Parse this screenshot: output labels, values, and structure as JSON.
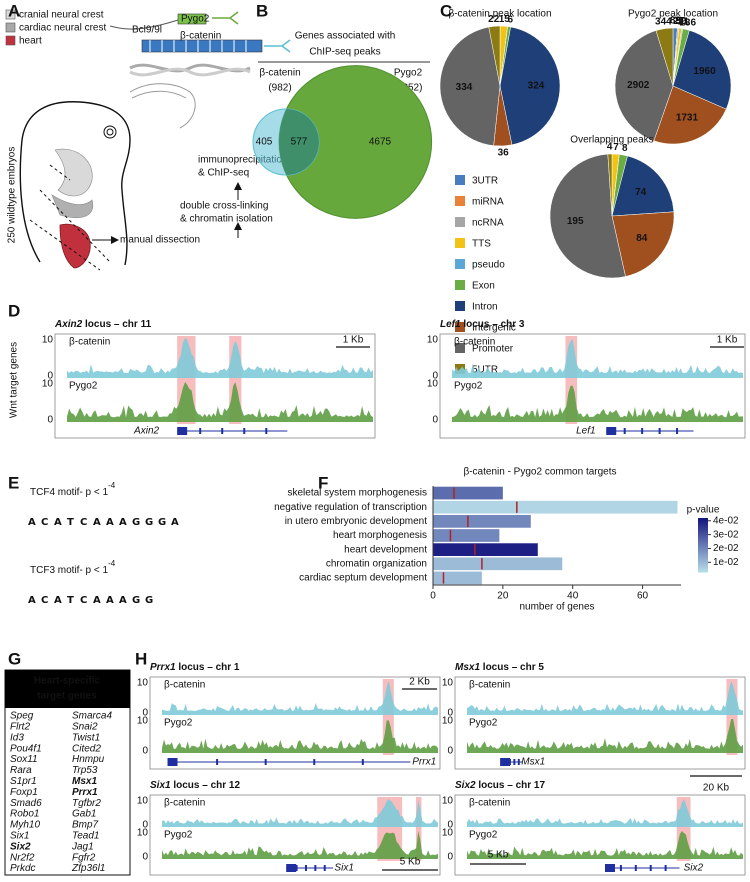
{
  "panel_labels": [
    "A",
    "B",
    "C",
    "D",
    "E",
    "F",
    "G",
    "H"
  ],
  "panel_a": {
    "legend": [
      "cranial neural crest",
      "cardiac neural crest",
      "heart"
    ],
    "protein_labels": [
      "Bcl9/9l",
      "Pygo2",
      "β-catenin"
    ],
    "side_label": "250 wildtype embryos",
    "steps": [
      [
        "immunoprecipitation",
        "& ChIP-seq"
      ],
      [
        "double cross-linking",
        "& chromatin isolation"
      ],
      [
        "manual dissection"
      ]
    ]
  },
  "chart_data": [
    {
      "type": "venn",
      "title": [
        "Genes associated with",
        "ChIP-seq peaks"
      ],
      "sets": [
        {
          "name": "β-catenin",
          "total": 982,
          "total_label": "(982)",
          "color": "#5bbfd3"
        },
        {
          "name": "Pygo2",
          "total": 5252,
          "total_label": "(5252)",
          "color": "#66a83c"
        }
      ],
      "regions": [
        405,
        577,
        4675
      ]
    },
    {
      "type": "pie",
      "title": "β-catenin peak location",
      "categories": [
        "3UTR",
        "miRNA",
        "ncRNA",
        "TTS",
        "pseudo",
        "Exon",
        "Intron",
        "Intergenic",
        "Promoter",
        "5UTR"
      ],
      "colors": [
        "#4a7dbf",
        "#e8813a",
        "#a5a5a5",
        "#f2c316",
        "#5ba8d8",
        "#6bad45",
        "#1f3f78",
        "#a0501e",
        "#646464",
        "#8c7a12"
      ],
      "values": [
        0,
        0,
        0,
        15,
        0,
        6,
        324,
        36,
        334,
        22
      ]
    },
    {
      "type": "pie",
      "title": "Pygo2 peak location",
      "values": [
        89,
        0,
        27,
        59,
        21,
        136,
        1960,
        1731,
        2902,
        344
      ]
    },
    {
      "type": "pie",
      "title": "Overlapping peaks",
      "values": [
        0,
        0,
        0,
        7,
        0,
        8,
        74,
        84,
        195,
        4
      ]
    },
    {
      "type": "barh",
      "title": "β-catenin - Pygo2 common targets",
      "categories": [
        "skeletal system morphogenesis",
        "negative regulation of transcription",
        "in utero embryonic development",
        "heart morphogenesis",
        "heart development",
        "chromatin organization",
        "cardiac septum development"
      ],
      "values": [
        20,
        70,
        28,
        19,
        30,
        37,
        14
      ],
      "marker_values": [
        6,
        24,
        10,
        5,
        12,
        14,
        3
      ],
      "p_values": [
        0.025,
        0.005,
        0.02,
        0.02,
        0.04,
        0.01,
        0.01
      ],
      "xlim": [
        0,
        71
      ],
      "xticks": [
        0,
        20,
        40,
        60
      ],
      "xlabel": "number of genes",
      "colorbar": {
        "title": "p-value",
        "lim": [
          0.003,
          0.042
        ],
        "colors": [
          "#b9dfea",
          "#15157e"
        ],
        "ticks": [
          {
            "value": 0.01,
            "label": "1e-02"
          },
          {
            "value": 0.02,
            "label": "2e-02"
          },
          {
            "value": 0.03,
            "label": "3e-02"
          },
          {
            "value": 0.04,
            "label": "4e-02"
          }
        ]
      }
    }
  ],
  "panel_d": {
    "side_label": "Wnt target genes",
    "track_names": [
      "β-catenin",
      "Pygo2"
    ],
    "track_yticks": [
      0,
      10
    ],
    "loci": [
      {
        "gene": "Axin2",
        "locus": " locus – chr 11",
        "scale": "1 Kb"
      },
      {
        "gene": "Lef1",
        "locus": " locus – chr 3",
        "scale": "1 Kb"
      }
    ]
  },
  "panel_e": {
    "motifs": [
      {
        "title": "TCF4 motif- p < 1",
        "exponent": "-4",
        "letters": [
          "A",
          "C",
          "A",
          "T",
          "C",
          "A",
          "A",
          "A",
          "G",
          "G",
          "G",
          "A"
        ]
      },
      {
        "title": "TCF3 motif- p < 1",
        "exponent": "-4",
        "letters": [
          "A",
          "C",
          "A",
          "T",
          "C",
          "A",
          "A",
          "A",
          "G",
          "G"
        ]
      }
    ]
  },
  "panel_g": {
    "header": [
      "Heart-specific",
      "target genes"
    ],
    "columns": [
      [
        {
          "name": "Speg",
          "bold": false
        },
        {
          "name": "Flrt2",
          "bold": false
        },
        {
          "name": "Id3",
          "bold": false
        },
        {
          "name": "Pou4f1",
          "bold": false
        },
        {
          "name": "Sox11",
          "bold": false
        },
        {
          "name": "Rara",
          "bold": false
        },
        {
          "name": "S1pr1",
          "bold": false
        },
        {
          "name": "Foxp1",
          "bold": false
        },
        {
          "name": "Smad6",
          "bold": false
        },
        {
          "name": "Robo1",
          "bold": false
        },
        {
          "name": "Myh10",
          "bold": false
        },
        {
          "name": "Six1",
          "bold": false
        },
        {
          "name": "Six2",
          "bold": true
        },
        {
          "name": "Nr2f2",
          "bold": false
        },
        {
          "name": "Prkdc",
          "bold": false
        }
      ],
      [
        {
          "name": "Smarca4",
          "bold": false
        },
        {
          "name": "Snai2",
          "bold": false
        },
        {
          "name": "Twist1",
          "bold": false
        },
        {
          "name": "Cited2",
          "bold": false
        },
        {
          "name": "Hnmpu",
          "bold": false
        },
        {
          "name": "Trp53",
          "bold": false
        },
        {
          "name": "Msx1",
          "bold": true
        },
        {
          "name": "Prrx1",
          "bold": true
        },
        {
          "name": "Tgfbr2",
          "bold": false
        },
        {
          "name": "Gab1",
          "bold": false
        },
        {
          "name": "Bmp7",
          "bold": false
        },
        {
          "name": "Tead1",
          "bold": false
        },
        {
          "name": "Jag1",
          "bold": false
        },
        {
          "name": "Fgfr2",
          "bold": false
        },
        {
          "name": "Zfp36l1",
          "bold": false
        }
      ]
    ]
  },
  "panel_h": {
    "track_names": [
      "β-catenin",
      "Pygo2"
    ],
    "track_yticks": [
      0,
      10
    ],
    "loci": [
      {
        "gene": "Prrx1",
        "locus": " locus – chr 1",
        "scale": "2 Kb"
      },
      {
        "gene": "Msx1",
        "locus": " locus – chr 5",
        "scale": "20 Kb"
      },
      {
        "gene": "Six1",
        "locus": " locus – chr 12",
        "scale": "5 Kb"
      },
      {
        "gene": "Six2",
        "locus": " locus – chr 17",
        "scale": "5 Kb"
      }
    ]
  }
}
